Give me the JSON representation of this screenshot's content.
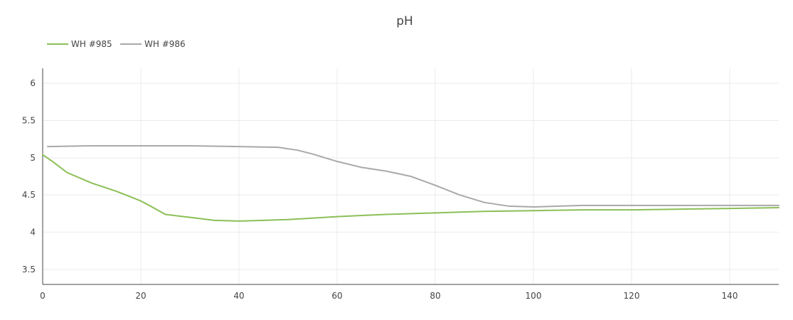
{
  "chart_data": {
    "type": "line",
    "title": "pH",
    "xlabel": "",
    "ylabel": "",
    "xlim": [
      0,
      150
    ],
    "ylim": [
      3.3,
      6.2
    ],
    "xticks": [
      0,
      20,
      40,
      60,
      80,
      100,
      120,
      140
    ],
    "yticks": [
      3.5,
      4,
      4.5,
      5,
      5.5,
      6
    ],
    "grid": true,
    "legend_position": "top-left",
    "series": [
      {
        "name": "WH #985",
        "color": "#8bbf56",
        "x": [
          0,
          2,
          5,
          10,
          15,
          20,
          22,
          25,
          30,
          35,
          40,
          45,
          50,
          55,
          60,
          70,
          80,
          90,
          100,
          110,
          120,
          130,
          140,
          150
        ],
        "y": [
          5.04,
          4.95,
          4.8,
          4.66,
          4.55,
          4.42,
          4.35,
          4.24,
          4.2,
          4.16,
          4.15,
          4.16,
          4.17,
          4.19,
          4.21,
          4.24,
          4.26,
          4.28,
          4.29,
          4.3,
          4.3,
          4.31,
          4.32,
          4.33
        ]
      },
      {
        "name": "WH #986",
        "color": "#a9a9a9",
        "x": [
          1,
          10,
          20,
          30,
          40,
          48,
          52,
          55,
          60,
          65,
          70,
          75,
          80,
          85,
          90,
          95,
          100,
          110,
          120,
          130,
          140,
          150
        ],
        "y": [
          5.15,
          5.16,
          5.16,
          5.16,
          5.15,
          5.14,
          5.1,
          5.05,
          4.95,
          4.87,
          4.82,
          4.75,
          4.63,
          4.5,
          4.4,
          4.35,
          4.34,
          4.36,
          4.36,
          4.36,
          4.36,
          4.36
        ]
      }
    ]
  }
}
